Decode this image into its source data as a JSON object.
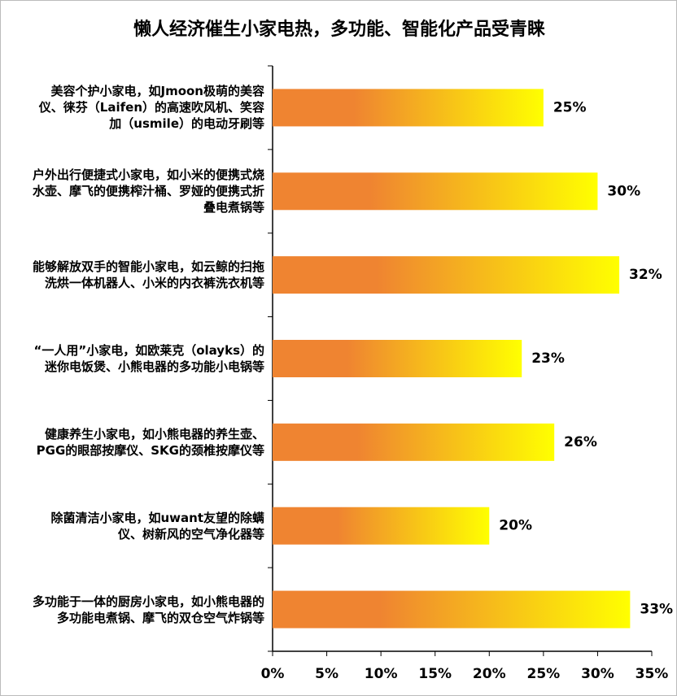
{
  "chart_data": {
    "type": "barh",
    "title": "懒人经济催生小家电热，多功能、智能化产品受青睐",
    "categories": [
      "美容个护小家电，如Jmoon极萌的美容仪、徕芬（Laifen）的高速吹风机、笑容加（usmile）的电动牙刷等",
      "户外出行便捷式小家电，如小米的便携式烧水壶、摩飞的便携榨汁桶、罗娅的便携式折叠电煮锅等",
      "能够解放双手的智能小家电，如云鲸的扫拖洗烘一体机器人、小米的内衣裤洗衣机等",
      "“一人用”小家电，如欧莱克（olayks）的迷你电饭煲、小熊电器的多功能小电锅等",
      "健康养生小家电，如小熊电器的养生壶、PGG的眼部按摩仪、SKG的颈椎按摩仪等",
      "除菌清洁小家电，如uwant友望的除螨仪、树新风的空气净化器等",
      "多功能于一体的厨房小家电，如小熊电器的多功能电煮锅、摩飞的双仓空气炸锅等"
    ],
    "values": [
      25,
      30,
      32,
      23,
      26,
      20,
      33
    ],
    "value_labels": [
      "25%",
      "30%",
      "32%",
      "23%",
      "26%",
      "20%",
      "33%"
    ],
    "gradient": [
      "#ef8431",
      "#ffff00"
    ],
    "xlim": [
      0,
      35
    ],
    "xticks": [
      {
        "value": 0,
        "label": "0%"
      },
      {
        "value": 5,
        "label": "5%"
      },
      {
        "value": 10,
        "label": "10%"
      },
      {
        "value": 15,
        "label": "15%"
      },
      {
        "value": 20,
        "label": "20%"
      },
      {
        "value": 25,
        "label": "25%"
      },
      {
        "value": 30,
        "label": "30%"
      },
      {
        "value": 35,
        "label": "35%"
      }
    ],
    "grid": false
  }
}
